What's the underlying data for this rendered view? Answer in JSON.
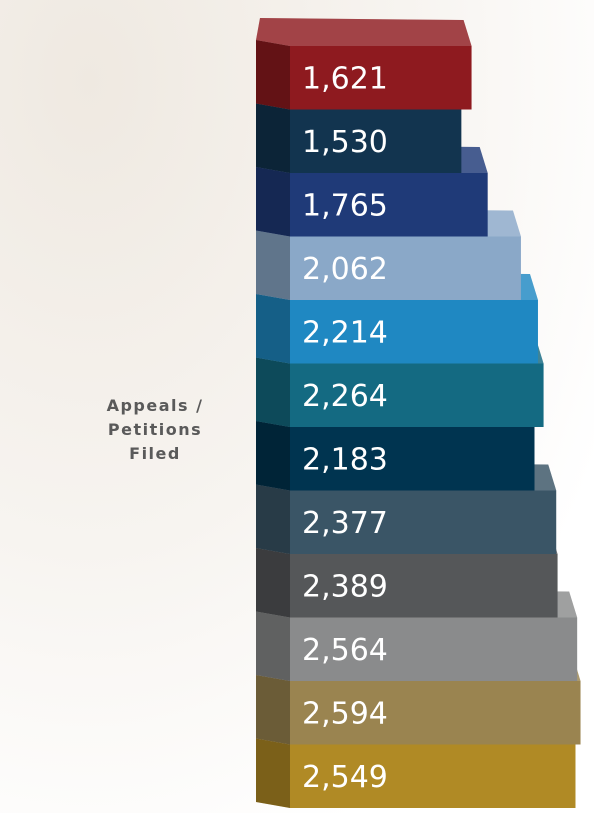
{
  "chart_data": {
    "type": "bar",
    "label": "Appeals / Petitions Filed",
    "values": [
      1621,
      1530,
      1765,
      2062,
      2214,
      2264,
      2183,
      2377,
      2389,
      2564,
      2594,
      2549
    ],
    "value_labels": [
      "1,621",
      "1,530",
      "1,765",
      "2,062",
      "2,214",
      "2,264",
      "2,183",
      "2,377",
      "2,389",
      "2,564",
      "2,594",
      "2,549"
    ],
    "colors": [
      "#8e1a1f",
      "#12344f",
      "#1f3a78",
      "#8aa8c8",
      "#1f88c2",
      "#146a82",
      "#003450",
      "#3a5566",
      "#555759",
      "#8a8b8c",
      "#9a8450",
      "#b08a25"
    ]
  }
}
